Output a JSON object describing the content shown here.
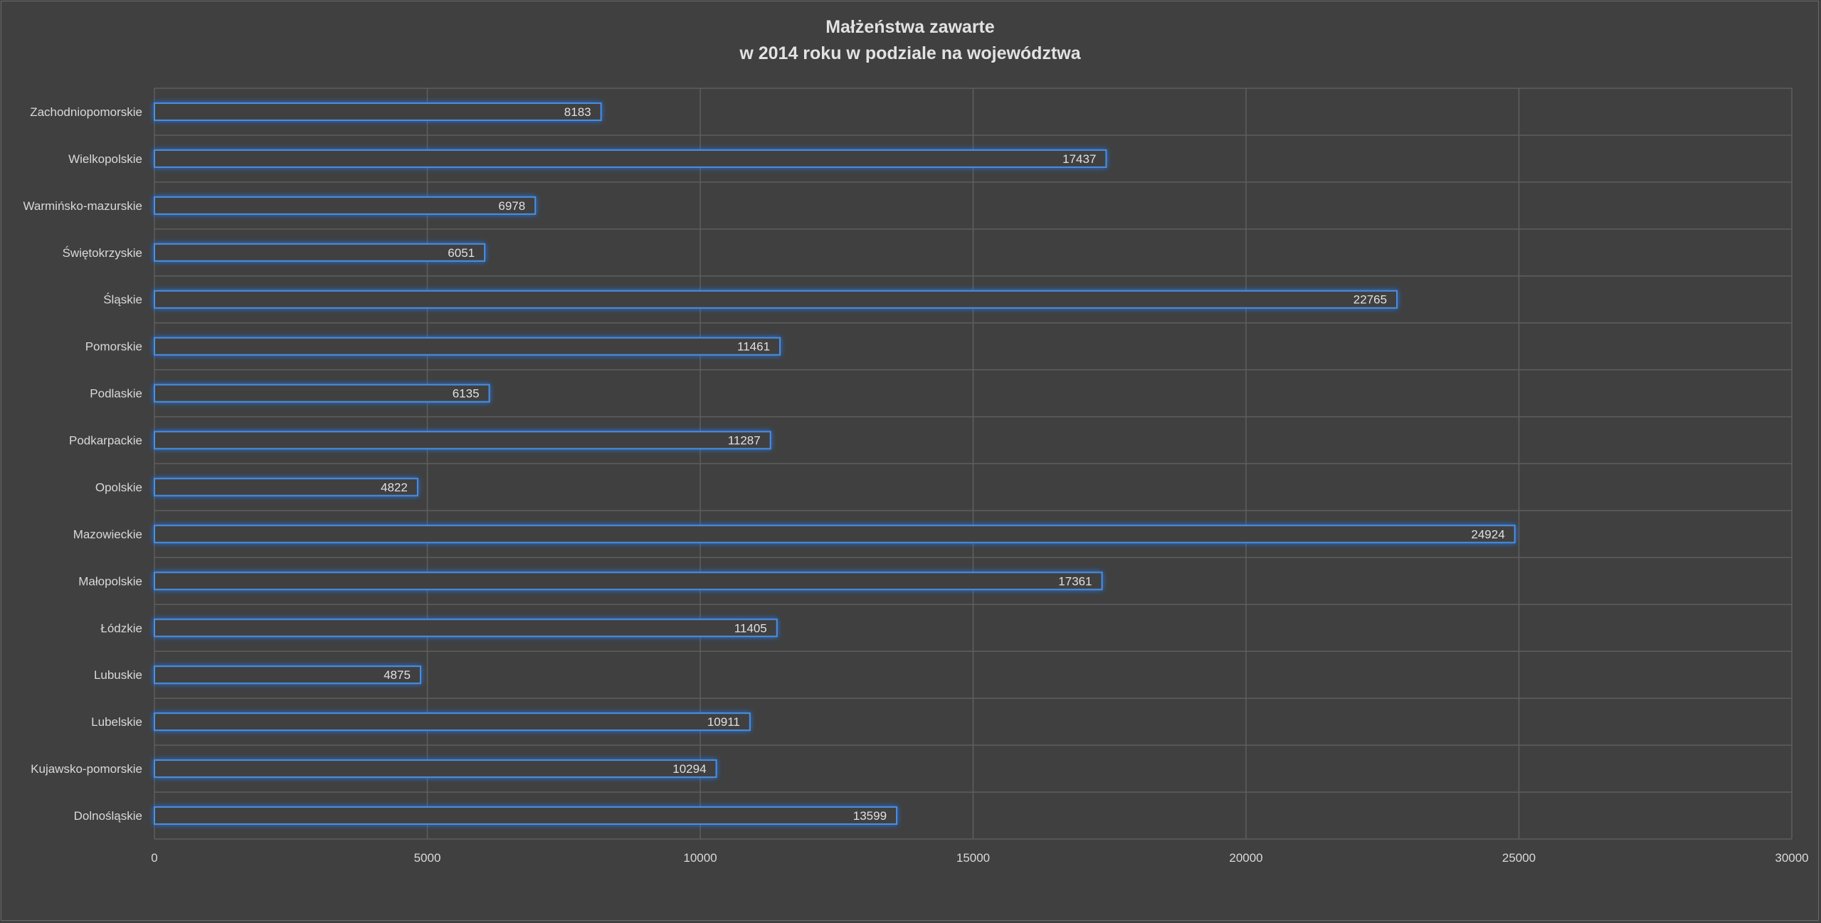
{
  "chart_data": {
    "type": "bar",
    "orientation": "horizontal",
    "title_line1": "Małżeństwa zawarte",
    "title_line2": "w 2014 roku w podziale na województwa",
    "xlabel": "",
    "ylabel": "",
    "xlim": [
      0,
      30000
    ],
    "x_ticks": [
      "0",
      "5000",
      "10000",
      "15000",
      "20000",
      "25000",
      "30000"
    ],
    "grid": true,
    "legend": "none",
    "colors": {
      "background": "#404040",
      "bar_outline": "#4a90e2",
      "bar_glow": "#1f78ff",
      "text": "#d9d9d9"
    },
    "categories": [
      "Zachodniopomorskie",
      "Wielkopolskie",
      "Warmińsko-mazurskie",
      "Świętokrzyskie",
      "Śląskie",
      "Pomorskie",
      "Podlaskie",
      "Podkarpackie",
      "Opolskie",
      "Mazowieckie",
      "Małopolskie",
      "Łódzkie",
      "Lubuskie",
      "Lubelskie",
      "Kujawsko-pomorskie",
      "Dolnośląskie"
    ],
    "values": [
      8183,
      17437,
      6978,
      6051,
      22765,
      11461,
      6135,
      11287,
      4822,
      24924,
      17361,
      11405,
      4875,
      10911,
      10294,
      13599
    ]
  }
}
